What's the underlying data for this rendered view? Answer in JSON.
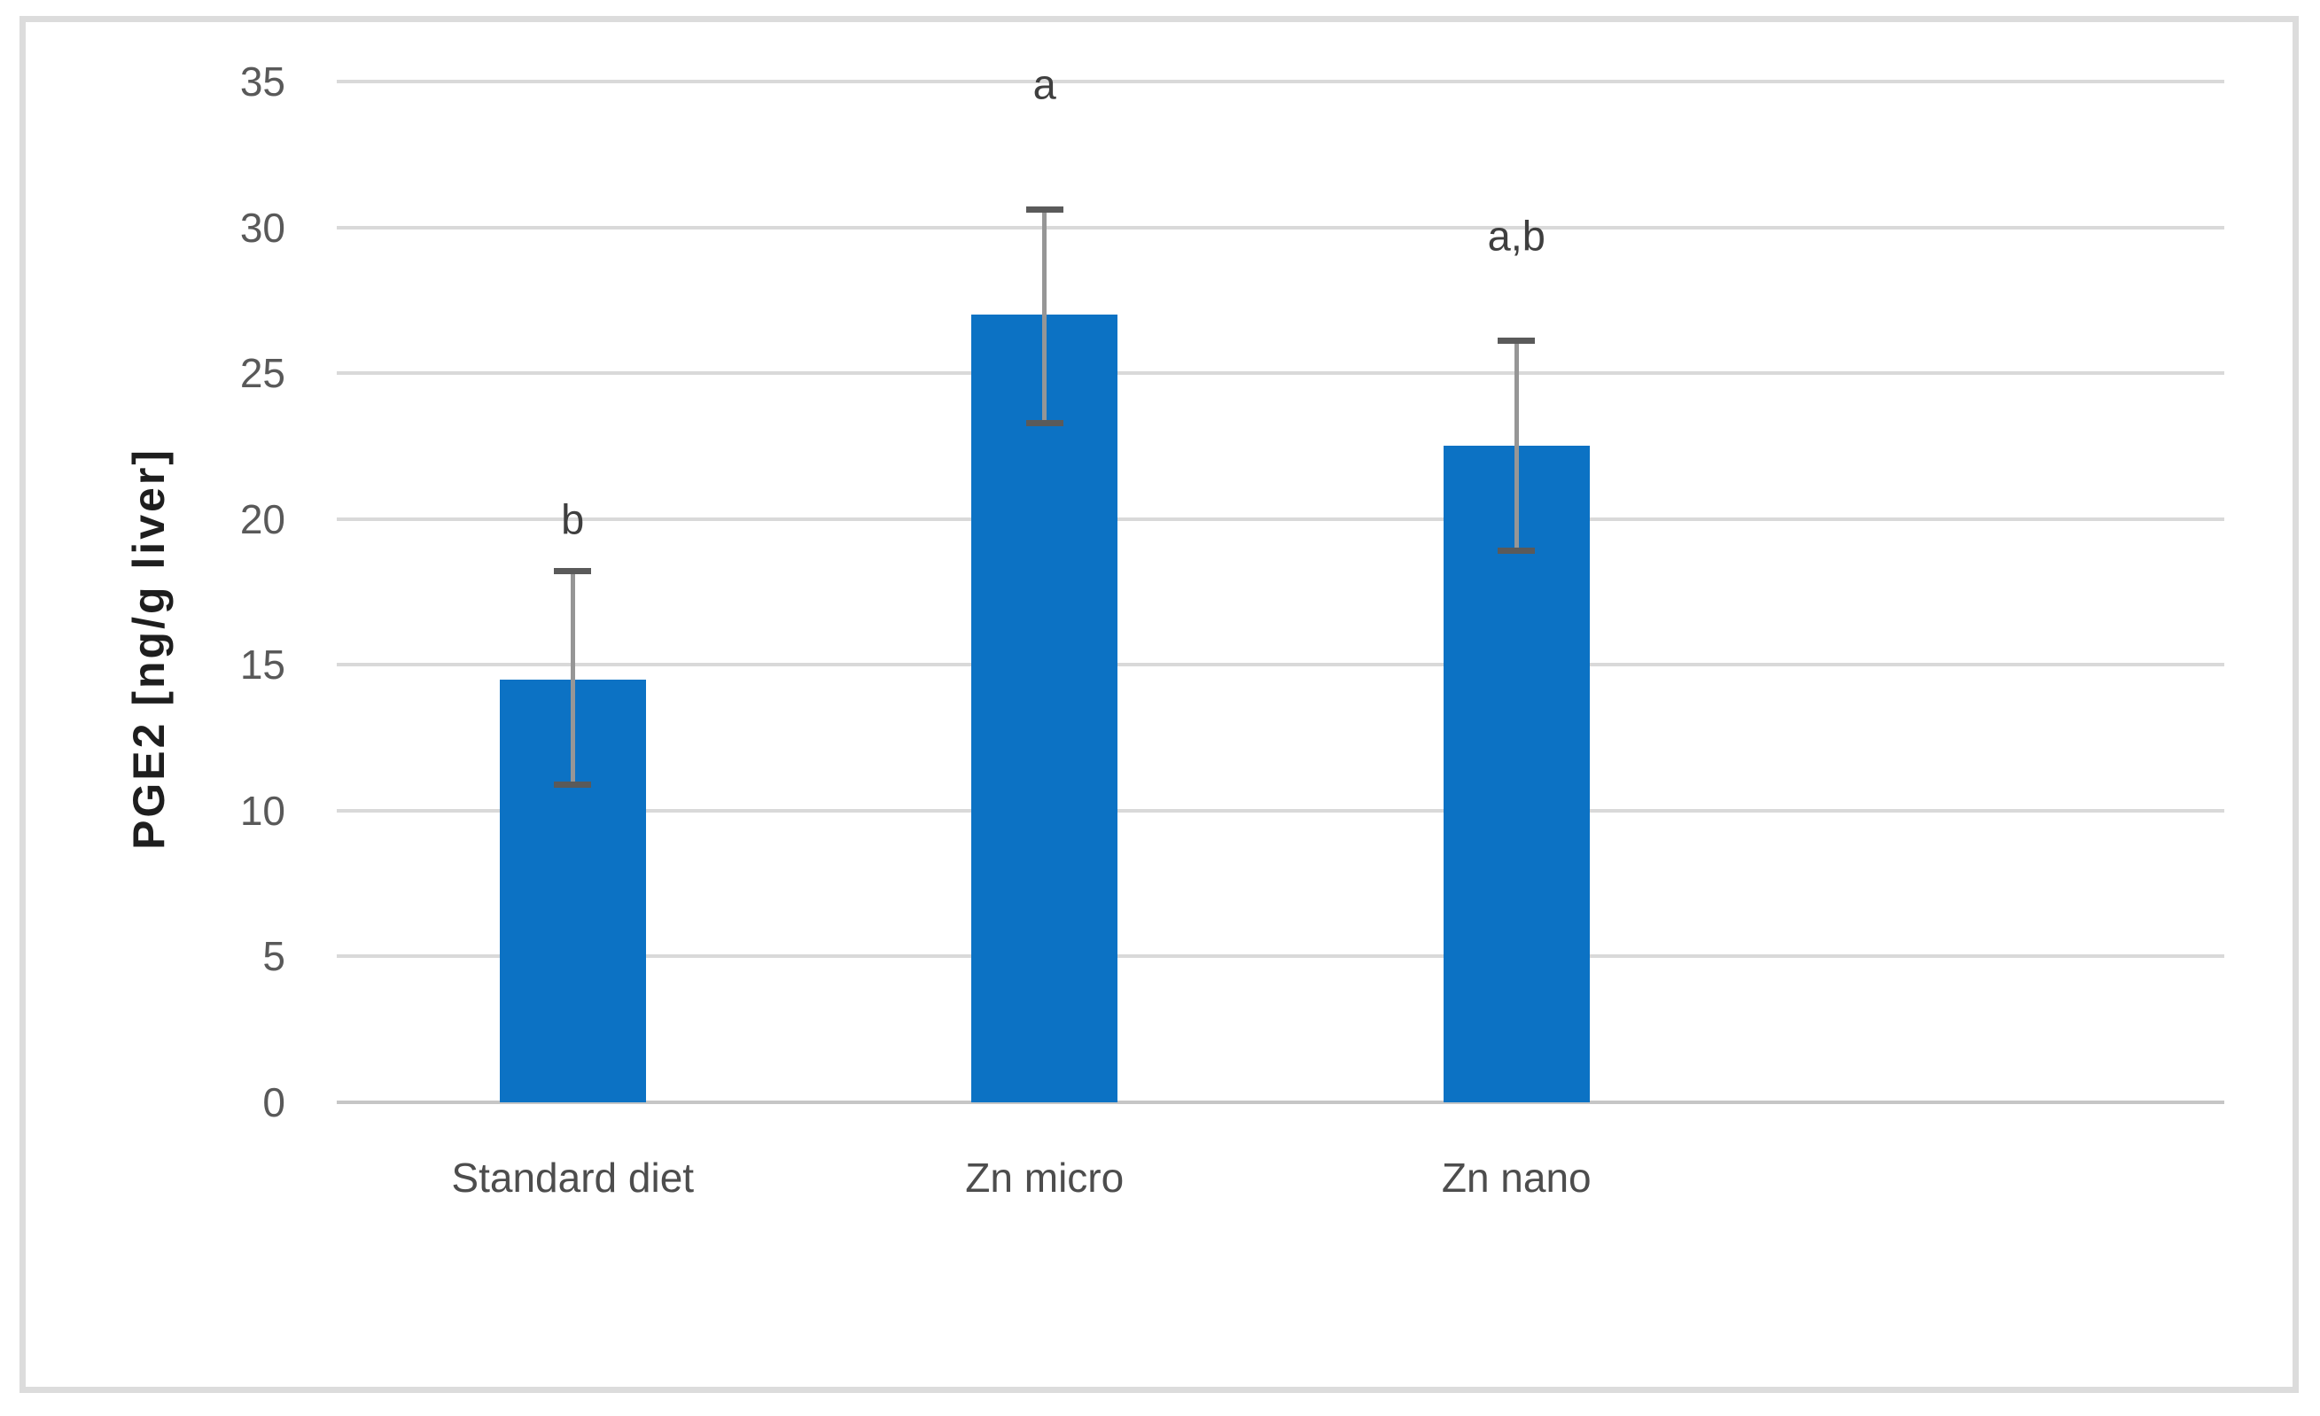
{
  "figure": {
    "background": "#FFFFFF",
    "border_color": "#DCDCDC"
  },
  "chart_data": {
    "type": "bar",
    "title": "",
    "xlabel": "",
    "ylabel": "PGE2 [ng/g liver]",
    "ylim": [
      0,
      35
    ],
    "yticks": [
      0,
      5,
      10,
      15,
      20,
      25,
      30,
      35
    ],
    "grid": true,
    "legend": "none",
    "x_slots": 4,
    "categories": [
      "Standard diet",
      "Zn micro",
      "Zn nano"
    ],
    "values": [
      14.5,
      27.0,
      22.5
    ],
    "error_low": [
      10.9,
      23.3,
      18.9
    ],
    "error_high": [
      18.2,
      30.6,
      26.1
    ],
    "sig_labels": [
      "b",
      "a",
      "a,b"
    ],
    "sig_label_y": [
      20.0,
      34.9,
      29.7
    ],
    "bar_color": "#0C72C4",
    "gridline_color": "#D9D9D9",
    "axis_line_color": "#C6C6C6",
    "error_bar_color": "#969696",
    "error_cap_color": "#5A5A5A",
    "tick_label_color": "#595959",
    "category_label_color": "#4D4D4D",
    "sig_label_color": "#3F3F3F",
    "axis_title_color": "#1E1E1E"
  }
}
